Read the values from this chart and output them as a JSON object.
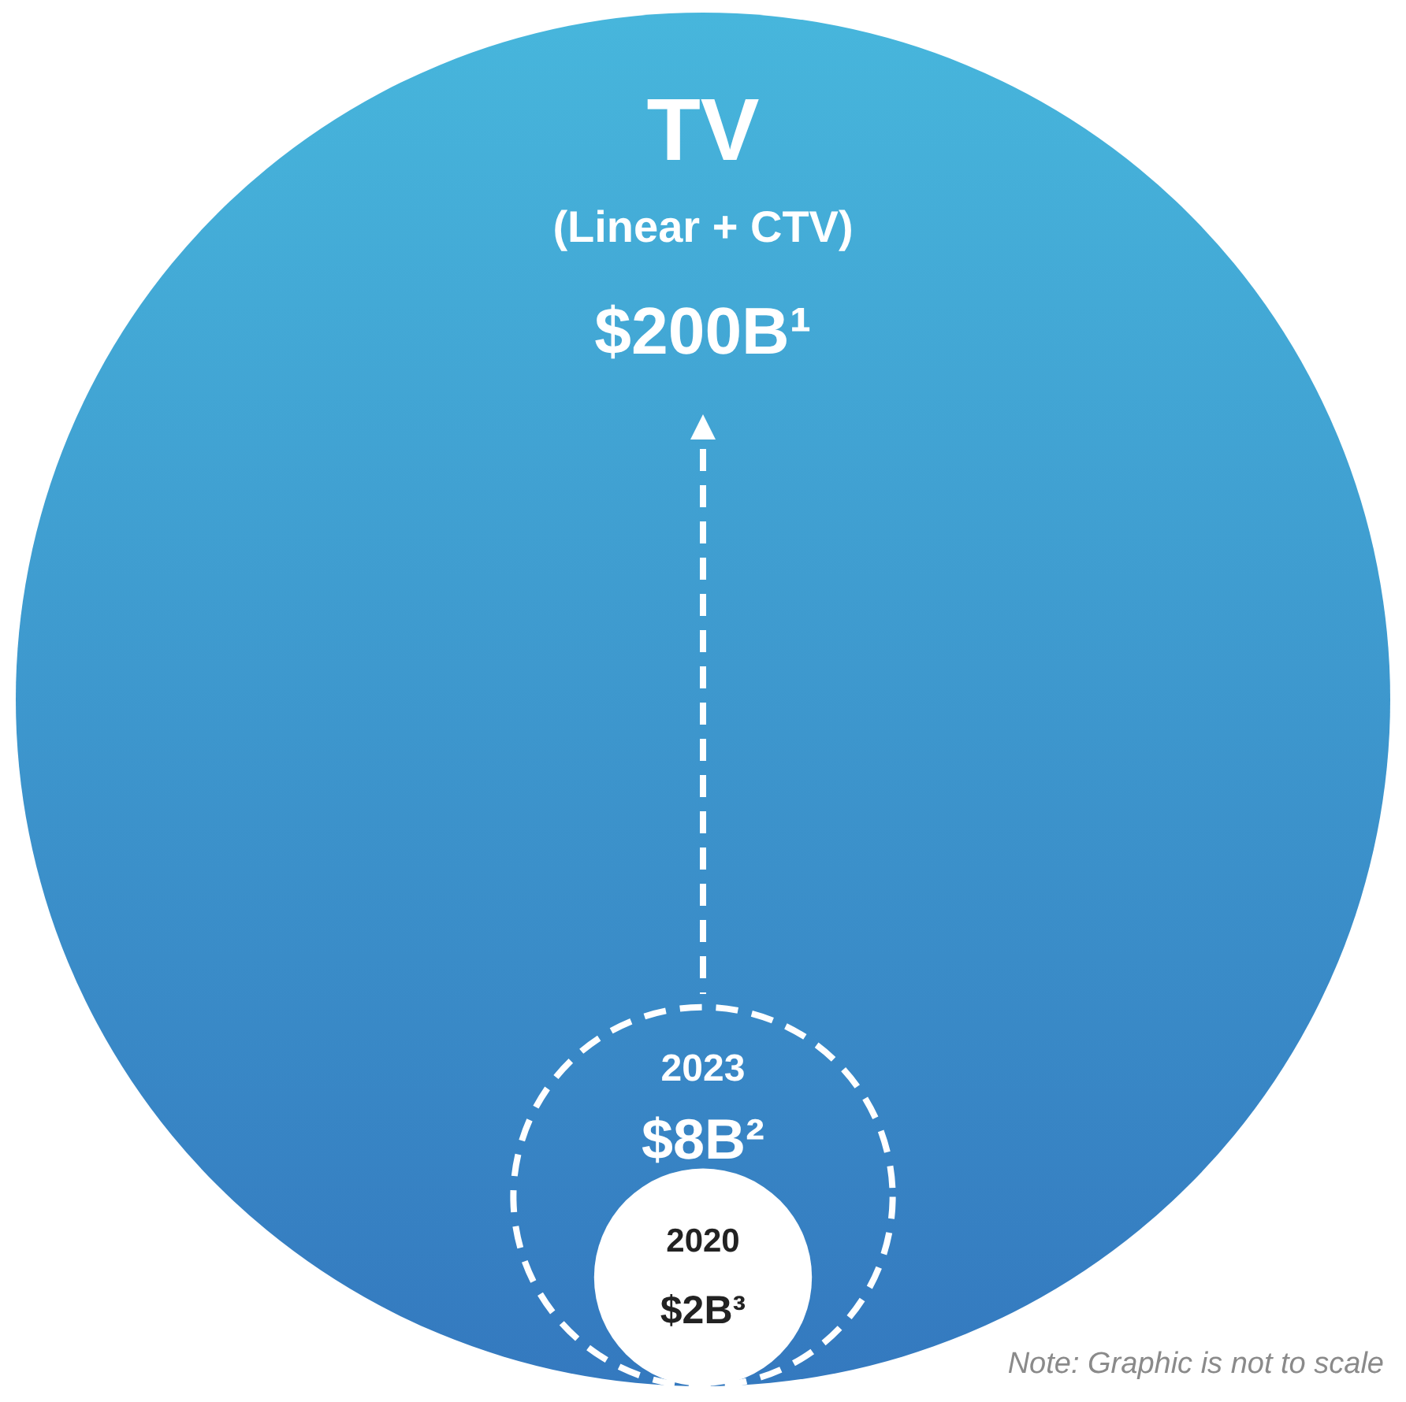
{
  "chart_data": {
    "type": "other",
    "categories": [
      "TV",
      "2023",
      "2020"
    ],
    "values": [
      200,
      8,
      2
    ],
    "value_labels": [
      "$200B¹",
      "$8B²",
      "$2B³"
    ],
    "colors": [
      "#3f9cd3",
      "#ffffff",
      "#ffffff"
    ],
    "annotations": [
      "(Linear + CTV)",
      "Note: Graphic is not to scale"
    ]
  }
}
